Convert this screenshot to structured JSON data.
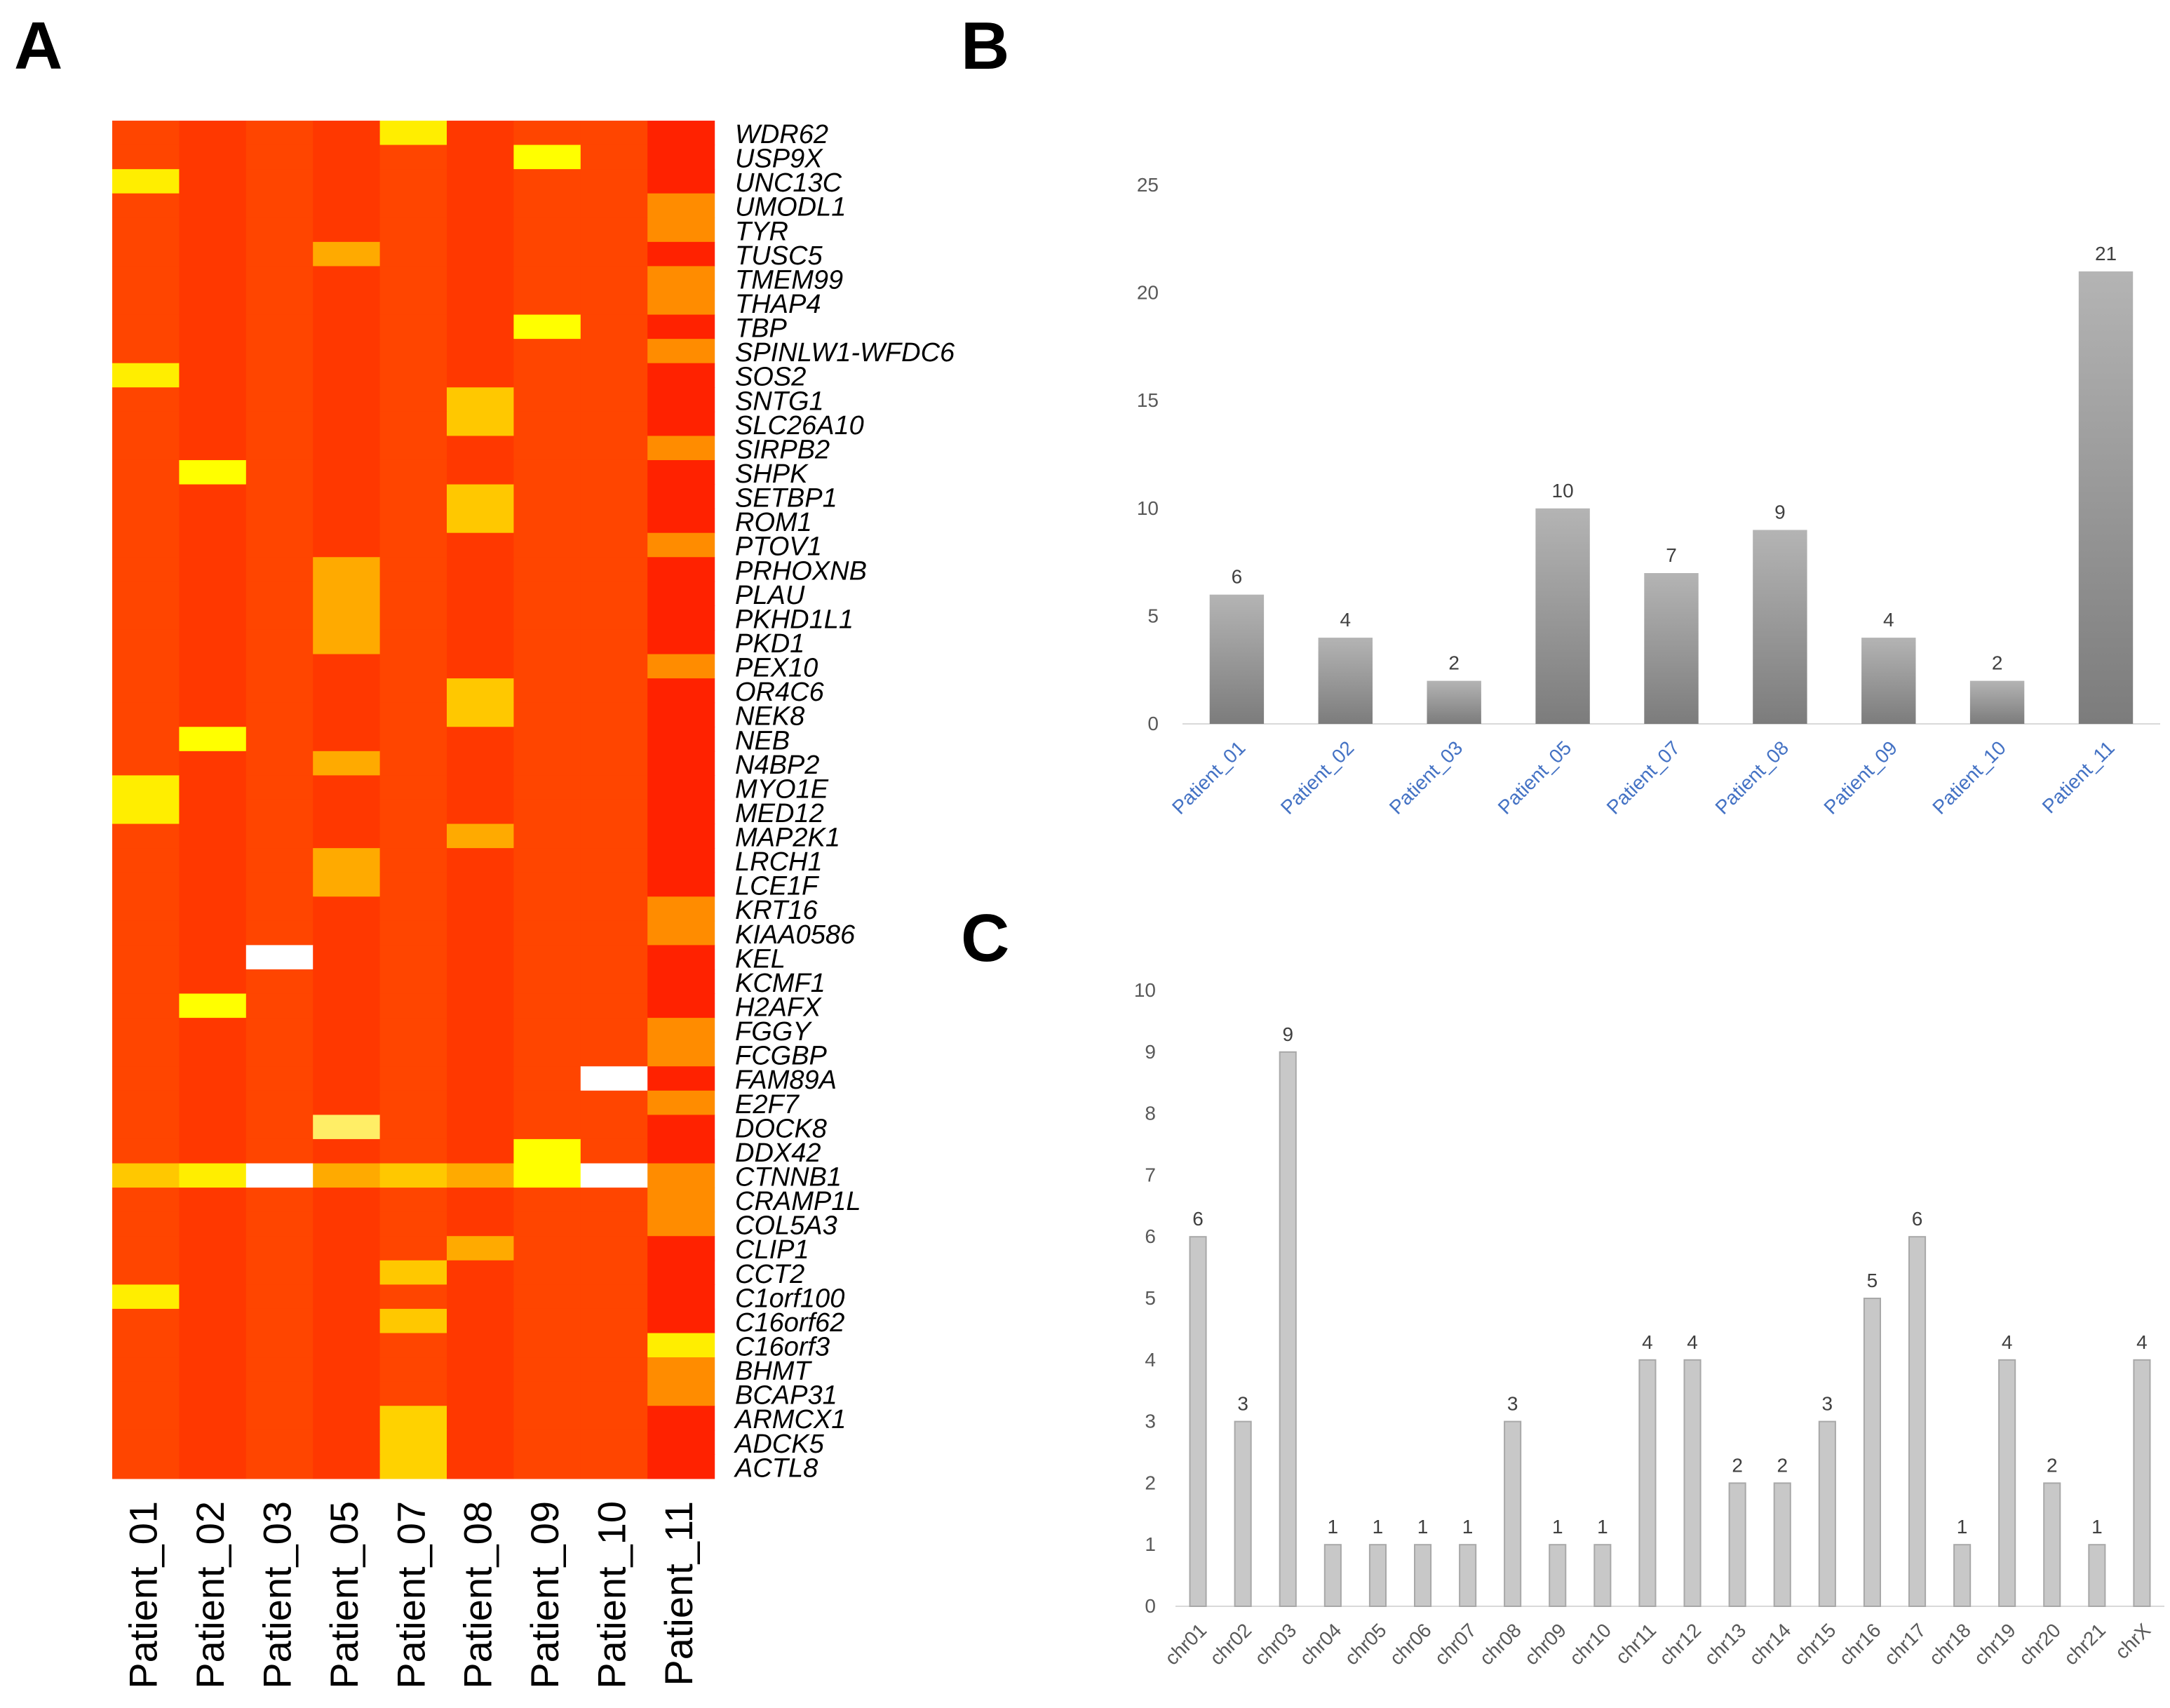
{
  "panels": {
    "a": "A",
    "b": "B",
    "c": "C"
  },
  "colors": {
    "palette": {
      "0": "#FF2200",
      "1": "#FF3800",
      "2": "#FF4500",
      "3": "#FF8C00",
      "4": "#FFAA00",
      "5": "#FFC800",
      "6": "#FFEE00",
      "7": "#FFFF00",
      "8": "#FFFFFF",
      "9": "#FFD200",
      "10": "#FFEE66"
    },
    "bar_b_top": "#B4B4B4",
    "bar_b_bottom": "#7C7C7C",
    "bar_c_fill": "#C8C8C8",
    "bar_c_stroke": "#A8A8A8",
    "tick_text": "#595959",
    "value_text": "#404040",
    "category_text": "#4472C4",
    "gridline": "#D9D9D9"
  },
  "chart_data": [
    {
      "type": "heatmap",
      "title": "",
      "columns": [
        "Patient_01",
        "Patient_02",
        "Patient_03",
        "Patient_05",
        "Patient_07",
        "Patient_08",
        "Patient_09",
        "Patient_10",
        "Patient_11"
      ],
      "rows": [
        "WDR62",
        "USP9X",
        "UNC13C",
        "UMODL1",
        "TYR",
        "TUSC5",
        "TMEM99",
        "THAP4",
        "TBP",
        "SPINLW1-WFDC6",
        "SOS2",
        "SNTG1",
        "SLC26A10",
        "SIRPB2",
        "SHPK",
        "SETBP1",
        "ROM1",
        "PTOV1",
        "PRHOXNB",
        "PLAU",
        "PKHD1L1",
        "PKD1",
        "PEX10",
        "OR4C6",
        "NEK8",
        "NEB",
        "N4BP2",
        "MYO1E",
        "MED12",
        "MAP2K1",
        "LRCH1",
        "LCE1F",
        "KRT16",
        "KIAA0586",
        "KEL",
        "KCMF1",
        "H2AFX",
        "FGGY",
        "FCGBP",
        "FAM89A",
        "E2F7",
        "DOCK8",
        "DDX42",
        "CTNNB1",
        "CRAMP1L",
        "COL5A3",
        "CLIP1",
        "CCT2",
        "C1orf100",
        "C16orf62",
        "C16orf3",
        "BHMT",
        "BCAP31",
        "ARMCX1",
        "ADCK5",
        "ACTL8"
      ],
      "values": [
        [
          2,
          1,
          2,
          1,
          6,
          1,
          2,
          2,
          0
        ],
        [
          2,
          1,
          2,
          1,
          2,
          1,
          7,
          2,
          0
        ],
        [
          6,
          1,
          2,
          1,
          2,
          1,
          2,
          2,
          0
        ],
        [
          2,
          1,
          2,
          1,
          2,
          1,
          2,
          2,
          3
        ],
        [
          2,
          1,
          2,
          1,
          2,
          1,
          2,
          2,
          3
        ],
        [
          2,
          1,
          2,
          4,
          2,
          1,
          2,
          2,
          0
        ],
        [
          2,
          1,
          2,
          1,
          2,
          1,
          2,
          2,
          3
        ],
        [
          2,
          1,
          2,
          1,
          2,
          1,
          2,
          2,
          3
        ],
        [
          2,
          1,
          2,
          1,
          2,
          1,
          7,
          2,
          0
        ],
        [
          2,
          1,
          2,
          1,
          2,
          1,
          2,
          2,
          3
        ],
        [
          6,
          1,
          2,
          1,
          2,
          1,
          2,
          2,
          0
        ],
        [
          2,
          1,
          2,
          1,
          2,
          5,
          2,
          2,
          0
        ],
        [
          2,
          1,
          2,
          1,
          2,
          5,
          2,
          2,
          0
        ],
        [
          2,
          1,
          2,
          1,
          2,
          1,
          2,
          2,
          3
        ],
        [
          2,
          7,
          2,
          1,
          2,
          1,
          2,
          2,
          0
        ],
        [
          2,
          1,
          2,
          1,
          2,
          5,
          2,
          2,
          0
        ],
        [
          2,
          1,
          2,
          1,
          2,
          5,
          2,
          2,
          0
        ],
        [
          2,
          1,
          2,
          1,
          2,
          1,
          2,
          2,
          3
        ],
        [
          2,
          1,
          2,
          4,
          2,
          1,
          2,
          2,
          0
        ],
        [
          2,
          1,
          2,
          4,
          2,
          1,
          2,
          2,
          0
        ],
        [
          2,
          1,
          2,
          4,
          2,
          1,
          2,
          2,
          0
        ],
        [
          2,
          1,
          2,
          4,
          2,
          1,
          2,
          2,
          0
        ],
        [
          2,
          1,
          2,
          1,
          2,
          1,
          2,
          2,
          3
        ],
        [
          2,
          1,
          2,
          1,
          2,
          5,
          2,
          2,
          0
        ],
        [
          2,
          1,
          2,
          1,
          2,
          5,
          2,
          2,
          0
        ],
        [
          2,
          7,
          2,
          1,
          2,
          1,
          2,
          2,
          0
        ],
        [
          2,
          1,
          2,
          4,
          2,
          1,
          2,
          2,
          0
        ],
        [
          6,
          1,
          2,
          1,
          2,
          1,
          2,
          2,
          0
        ],
        [
          6,
          1,
          2,
          1,
          2,
          1,
          2,
          2,
          0
        ],
        [
          2,
          1,
          2,
          1,
          2,
          4,
          2,
          2,
          0
        ],
        [
          2,
          1,
          2,
          4,
          2,
          1,
          2,
          2,
          0
        ],
        [
          2,
          1,
          2,
          4,
          2,
          1,
          2,
          2,
          0
        ],
        [
          2,
          1,
          2,
          1,
          2,
          1,
          2,
          2,
          3
        ],
        [
          2,
          1,
          2,
          1,
          2,
          1,
          2,
          2,
          3
        ],
        [
          2,
          1,
          8,
          1,
          2,
          1,
          2,
          2,
          0
        ],
        [
          2,
          1,
          2,
          1,
          2,
          1,
          2,
          2,
          0
        ],
        [
          2,
          7,
          2,
          1,
          2,
          1,
          2,
          2,
          0
        ],
        [
          2,
          1,
          2,
          1,
          2,
          1,
          2,
          2,
          3
        ],
        [
          2,
          1,
          2,
          1,
          2,
          1,
          2,
          2,
          3
        ],
        [
          2,
          1,
          2,
          1,
          2,
          1,
          2,
          8,
          0
        ],
        [
          2,
          1,
          2,
          1,
          2,
          1,
          2,
          2,
          3
        ],
        [
          2,
          1,
          2,
          10,
          2,
          1,
          2,
          2,
          0
        ],
        [
          2,
          1,
          2,
          1,
          2,
          1,
          7,
          2,
          0
        ],
        [
          5,
          6,
          8,
          4,
          5,
          4,
          7,
          8,
          3
        ],
        [
          2,
          1,
          2,
          1,
          2,
          1,
          2,
          2,
          3
        ],
        [
          2,
          1,
          2,
          1,
          2,
          1,
          2,
          2,
          3
        ],
        [
          2,
          1,
          2,
          1,
          2,
          4,
          2,
          2,
          0
        ],
        [
          2,
          1,
          2,
          1,
          5,
          1,
          2,
          2,
          0
        ],
        [
          6,
          1,
          2,
          1,
          2,
          1,
          2,
          2,
          0
        ],
        [
          2,
          1,
          2,
          1,
          5,
          1,
          2,
          2,
          0
        ],
        [
          2,
          1,
          2,
          1,
          2,
          1,
          2,
          2,
          6
        ],
        [
          2,
          1,
          2,
          1,
          2,
          1,
          2,
          2,
          3
        ],
        [
          2,
          1,
          2,
          1,
          2,
          1,
          2,
          2,
          3
        ],
        [
          2,
          1,
          2,
          1,
          9,
          1,
          2,
          2,
          0
        ],
        [
          2,
          1,
          2,
          1,
          9,
          1,
          2,
          2,
          0
        ],
        [
          2,
          1,
          2,
          1,
          9,
          1,
          2,
          2,
          0
        ]
      ]
    },
    {
      "type": "bar",
      "title": "",
      "xlabel": "",
      "ylabel": "",
      "categories": [
        "Patient_01",
        "Patient_02",
        "Patient_03",
        "Patient_05",
        "Patient_07",
        "Patient_08",
        "Patient_09",
        "Patient_10",
        "Patient_11"
      ],
      "values": [
        6,
        4,
        2,
        10,
        7,
        9,
        4,
        2,
        21
      ],
      "ylim": [
        0,
        25
      ],
      "yticks": [
        "0",
        "5",
        "10",
        "15",
        "20",
        "25"
      ],
      "data_labels": [
        "6",
        "4",
        "2",
        "10",
        "7",
        "9",
        "4",
        "2",
        "21"
      ],
      "grid": false
    },
    {
      "type": "bar",
      "title": "",
      "xlabel": "",
      "ylabel": "",
      "categories": [
        "chr01",
        "chr02",
        "chr03",
        "chr04",
        "chr05",
        "chr06",
        "chr07",
        "chr08",
        "chr09",
        "chr10",
        "chr11",
        "chr12",
        "chr13",
        "chr14",
        "chr15",
        "chr16",
        "chr17",
        "chr18",
        "chr19",
        "chr20",
        "chr21",
        "chrX"
      ],
      "values": [
        6,
        3,
        9,
        1,
        1,
        1,
        1,
        3,
        1,
        1,
        4,
        4,
        2,
        2,
        3,
        5,
        6,
        1,
        4,
        2,
        1,
        4
      ],
      "ylim": [
        0,
        10
      ],
      "yticks": [
        "0",
        "1",
        "2",
        "3",
        "4",
        "5",
        "6",
        "7",
        "8",
        "9",
        "10"
      ],
      "data_labels": [
        "6",
        "3",
        "9",
        "1",
        "1",
        "1",
        "1",
        "3",
        "1",
        "1",
        "4",
        "4",
        "2",
        "2",
        "3",
        "5",
        "6",
        "1",
        "4",
        "2",
        "1",
        "4"
      ],
      "grid": false
    }
  ]
}
